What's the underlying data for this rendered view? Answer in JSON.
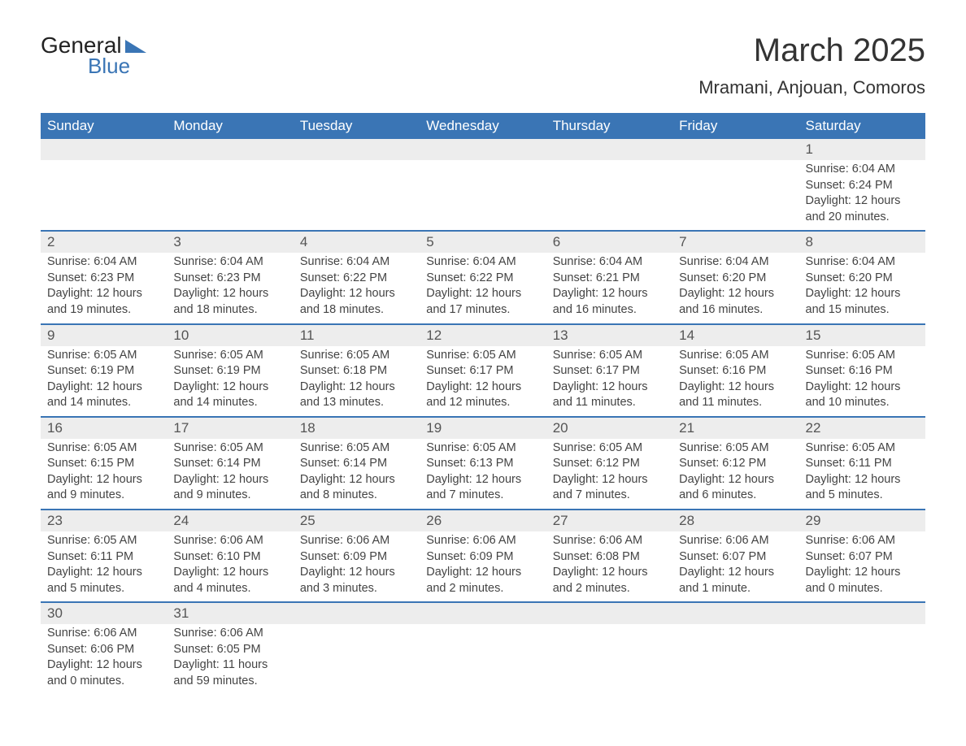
{
  "logo": {
    "text_top": "General",
    "text_bottom": "Blue",
    "triangle_color": "#3a75b5",
    "text_color_top": "#222222",
    "text_color_bottom": "#3a75b5"
  },
  "title": "March 2025",
  "location": "Mramani, Anjouan, Comoros",
  "colors": {
    "header_bg": "#3a75b5",
    "header_text": "#ffffff",
    "daynum_bg": "#ededed",
    "border": "#3a75b5",
    "body_text": "#444444"
  },
  "typography": {
    "title_fontsize": 40,
    "location_fontsize": 22,
    "dayheader_fontsize": 17,
    "daynum_fontsize": 17,
    "content_fontsize": 14.5
  },
  "day_headers": [
    "Sunday",
    "Monday",
    "Tuesday",
    "Wednesday",
    "Thursday",
    "Friday",
    "Saturday"
  ],
  "weeks": [
    [
      null,
      null,
      null,
      null,
      null,
      null,
      {
        "n": "1",
        "sunrise": "Sunrise: 6:04 AM",
        "sunset": "Sunset: 6:24 PM",
        "daylight": "Daylight: 12 hours and 20 minutes."
      }
    ],
    [
      {
        "n": "2",
        "sunrise": "Sunrise: 6:04 AM",
        "sunset": "Sunset: 6:23 PM",
        "daylight": "Daylight: 12 hours and 19 minutes."
      },
      {
        "n": "3",
        "sunrise": "Sunrise: 6:04 AM",
        "sunset": "Sunset: 6:23 PM",
        "daylight": "Daylight: 12 hours and 18 minutes."
      },
      {
        "n": "4",
        "sunrise": "Sunrise: 6:04 AM",
        "sunset": "Sunset: 6:22 PM",
        "daylight": "Daylight: 12 hours and 18 minutes."
      },
      {
        "n": "5",
        "sunrise": "Sunrise: 6:04 AM",
        "sunset": "Sunset: 6:22 PM",
        "daylight": "Daylight: 12 hours and 17 minutes."
      },
      {
        "n": "6",
        "sunrise": "Sunrise: 6:04 AM",
        "sunset": "Sunset: 6:21 PM",
        "daylight": "Daylight: 12 hours and 16 minutes."
      },
      {
        "n": "7",
        "sunrise": "Sunrise: 6:04 AM",
        "sunset": "Sunset: 6:20 PM",
        "daylight": "Daylight: 12 hours and 16 minutes."
      },
      {
        "n": "8",
        "sunrise": "Sunrise: 6:04 AM",
        "sunset": "Sunset: 6:20 PM",
        "daylight": "Daylight: 12 hours and 15 minutes."
      }
    ],
    [
      {
        "n": "9",
        "sunrise": "Sunrise: 6:05 AM",
        "sunset": "Sunset: 6:19 PM",
        "daylight": "Daylight: 12 hours and 14 minutes."
      },
      {
        "n": "10",
        "sunrise": "Sunrise: 6:05 AM",
        "sunset": "Sunset: 6:19 PM",
        "daylight": "Daylight: 12 hours and 14 minutes."
      },
      {
        "n": "11",
        "sunrise": "Sunrise: 6:05 AM",
        "sunset": "Sunset: 6:18 PM",
        "daylight": "Daylight: 12 hours and 13 minutes."
      },
      {
        "n": "12",
        "sunrise": "Sunrise: 6:05 AM",
        "sunset": "Sunset: 6:17 PM",
        "daylight": "Daylight: 12 hours and 12 minutes."
      },
      {
        "n": "13",
        "sunrise": "Sunrise: 6:05 AM",
        "sunset": "Sunset: 6:17 PM",
        "daylight": "Daylight: 12 hours and 11 minutes."
      },
      {
        "n": "14",
        "sunrise": "Sunrise: 6:05 AM",
        "sunset": "Sunset: 6:16 PM",
        "daylight": "Daylight: 12 hours and 11 minutes."
      },
      {
        "n": "15",
        "sunrise": "Sunrise: 6:05 AM",
        "sunset": "Sunset: 6:16 PM",
        "daylight": "Daylight: 12 hours and 10 minutes."
      }
    ],
    [
      {
        "n": "16",
        "sunrise": "Sunrise: 6:05 AM",
        "sunset": "Sunset: 6:15 PM",
        "daylight": "Daylight: 12 hours and 9 minutes."
      },
      {
        "n": "17",
        "sunrise": "Sunrise: 6:05 AM",
        "sunset": "Sunset: 6:14 PM",
        "daylight": "Daylight: 12 hours and 9 minutes."
      },
      {
        "n": "18",
        "sunrise": "Sunrise: 6:05 AM",
        "sunset": "Sunset: 6:14 PM",
        "daylight": "Daylight: 12 hours and 8 minutes."
      },
      {
        "n": "19",
        "sunrise": "Sunrise: 6:05 AM",
        "sunset": "Sunset: 6:13 PM",
        "daylight": "Daylight: 12 hours and 7 minutes."
      },
      {
        "n": "20",
        "sunrise": "Sunrise: 6:05 AM",
        "sunset": "Sunset: 6:12 PM",
        "daylight": "Daylight: 12 hours and 7 minutes."
      },
      {
        "n": "21",
        "sunrise": "Sunrise: 6:05 AM",
        "sunset": "Sunset: 6:12 PM",
        "daylight": "Daylight: 12 hours and 6 minutes."
      },
      {
        "n": "22",
        "sunrise": "Sunrise: 6:05 AM",
        "sunset": "Sunset: 6:11 PM",
        "daylight": "Daylight: 12 hours and 5 minutes."
      }
    ],
    [
      {
        "n": "23",
        "sunrise": "Sunrise: 6:05 AM",
        "sunset": "Sunset: 6:11 PM",
        "daylight": "Daylight: 12 hours and 5 minutes."
      },
      {
        "n": "24",
        "sunrise": "Sunrise: 6:06 AM",
        "sunset": "Sunset: 6:10 PM",
        "daylight": "Daylight: 12 hours and 4 minutes."
      },
      {
        "n": "25",
        "sunrise": "Sunrise: 6:06 AM",
        "sunset": "Sunset: 6:09 PM",
        "daylight": "Daylight: 12 hours and 3 minutes."
      },
      {
        "n": "26",
        "sunrise": "Sunrise: 6:06 AM",
        "sunset": "Sunset: 6:09 PM",
        "daylight": "Daylight: 12 hours and 2 minutes."
      },
      {
        "n": "27",
        "sunrise": "Sunrise: 6:06 AM",
        "sunset": "Sunset: 6:08 PM",
        "daylight": "Daylight: 12 hours and 2 minutes."
      },
      {
        "n": "28",
        "sunrise": "Sunrise: 6:06 AM",
        "sunset": "Sunset: 6:07 PM",
        "daylight": "Daylight: 12 hours and 1 minute."
      },
      {
        "n": "29",
        "sunrise": "Sunrise: 6:06 AM",
        "sunset": "Sunset: 6:07 PM",
        "daylight": "Daylight: 12 hours and 0 minutes."
      }
    ],
    [
      {
        "n": "30",
        "sunrise": "Sunrise: 6:06 AM",
        "sunset": "Sunset: 6:06 PM",
        "daylight": "Daylight: 12 hours and 0 minutes."
      },
      {
        "n": "31",
        "sunrise": "Sunrise: 6:06 AM",
        "sunset": "Sunset: 6:05 PM",
        "daylight": "Daylight: 11 hours and 59 minutes."
      },
      null,
      null,
      null,
      null,
      null
    ]
  ]
}
